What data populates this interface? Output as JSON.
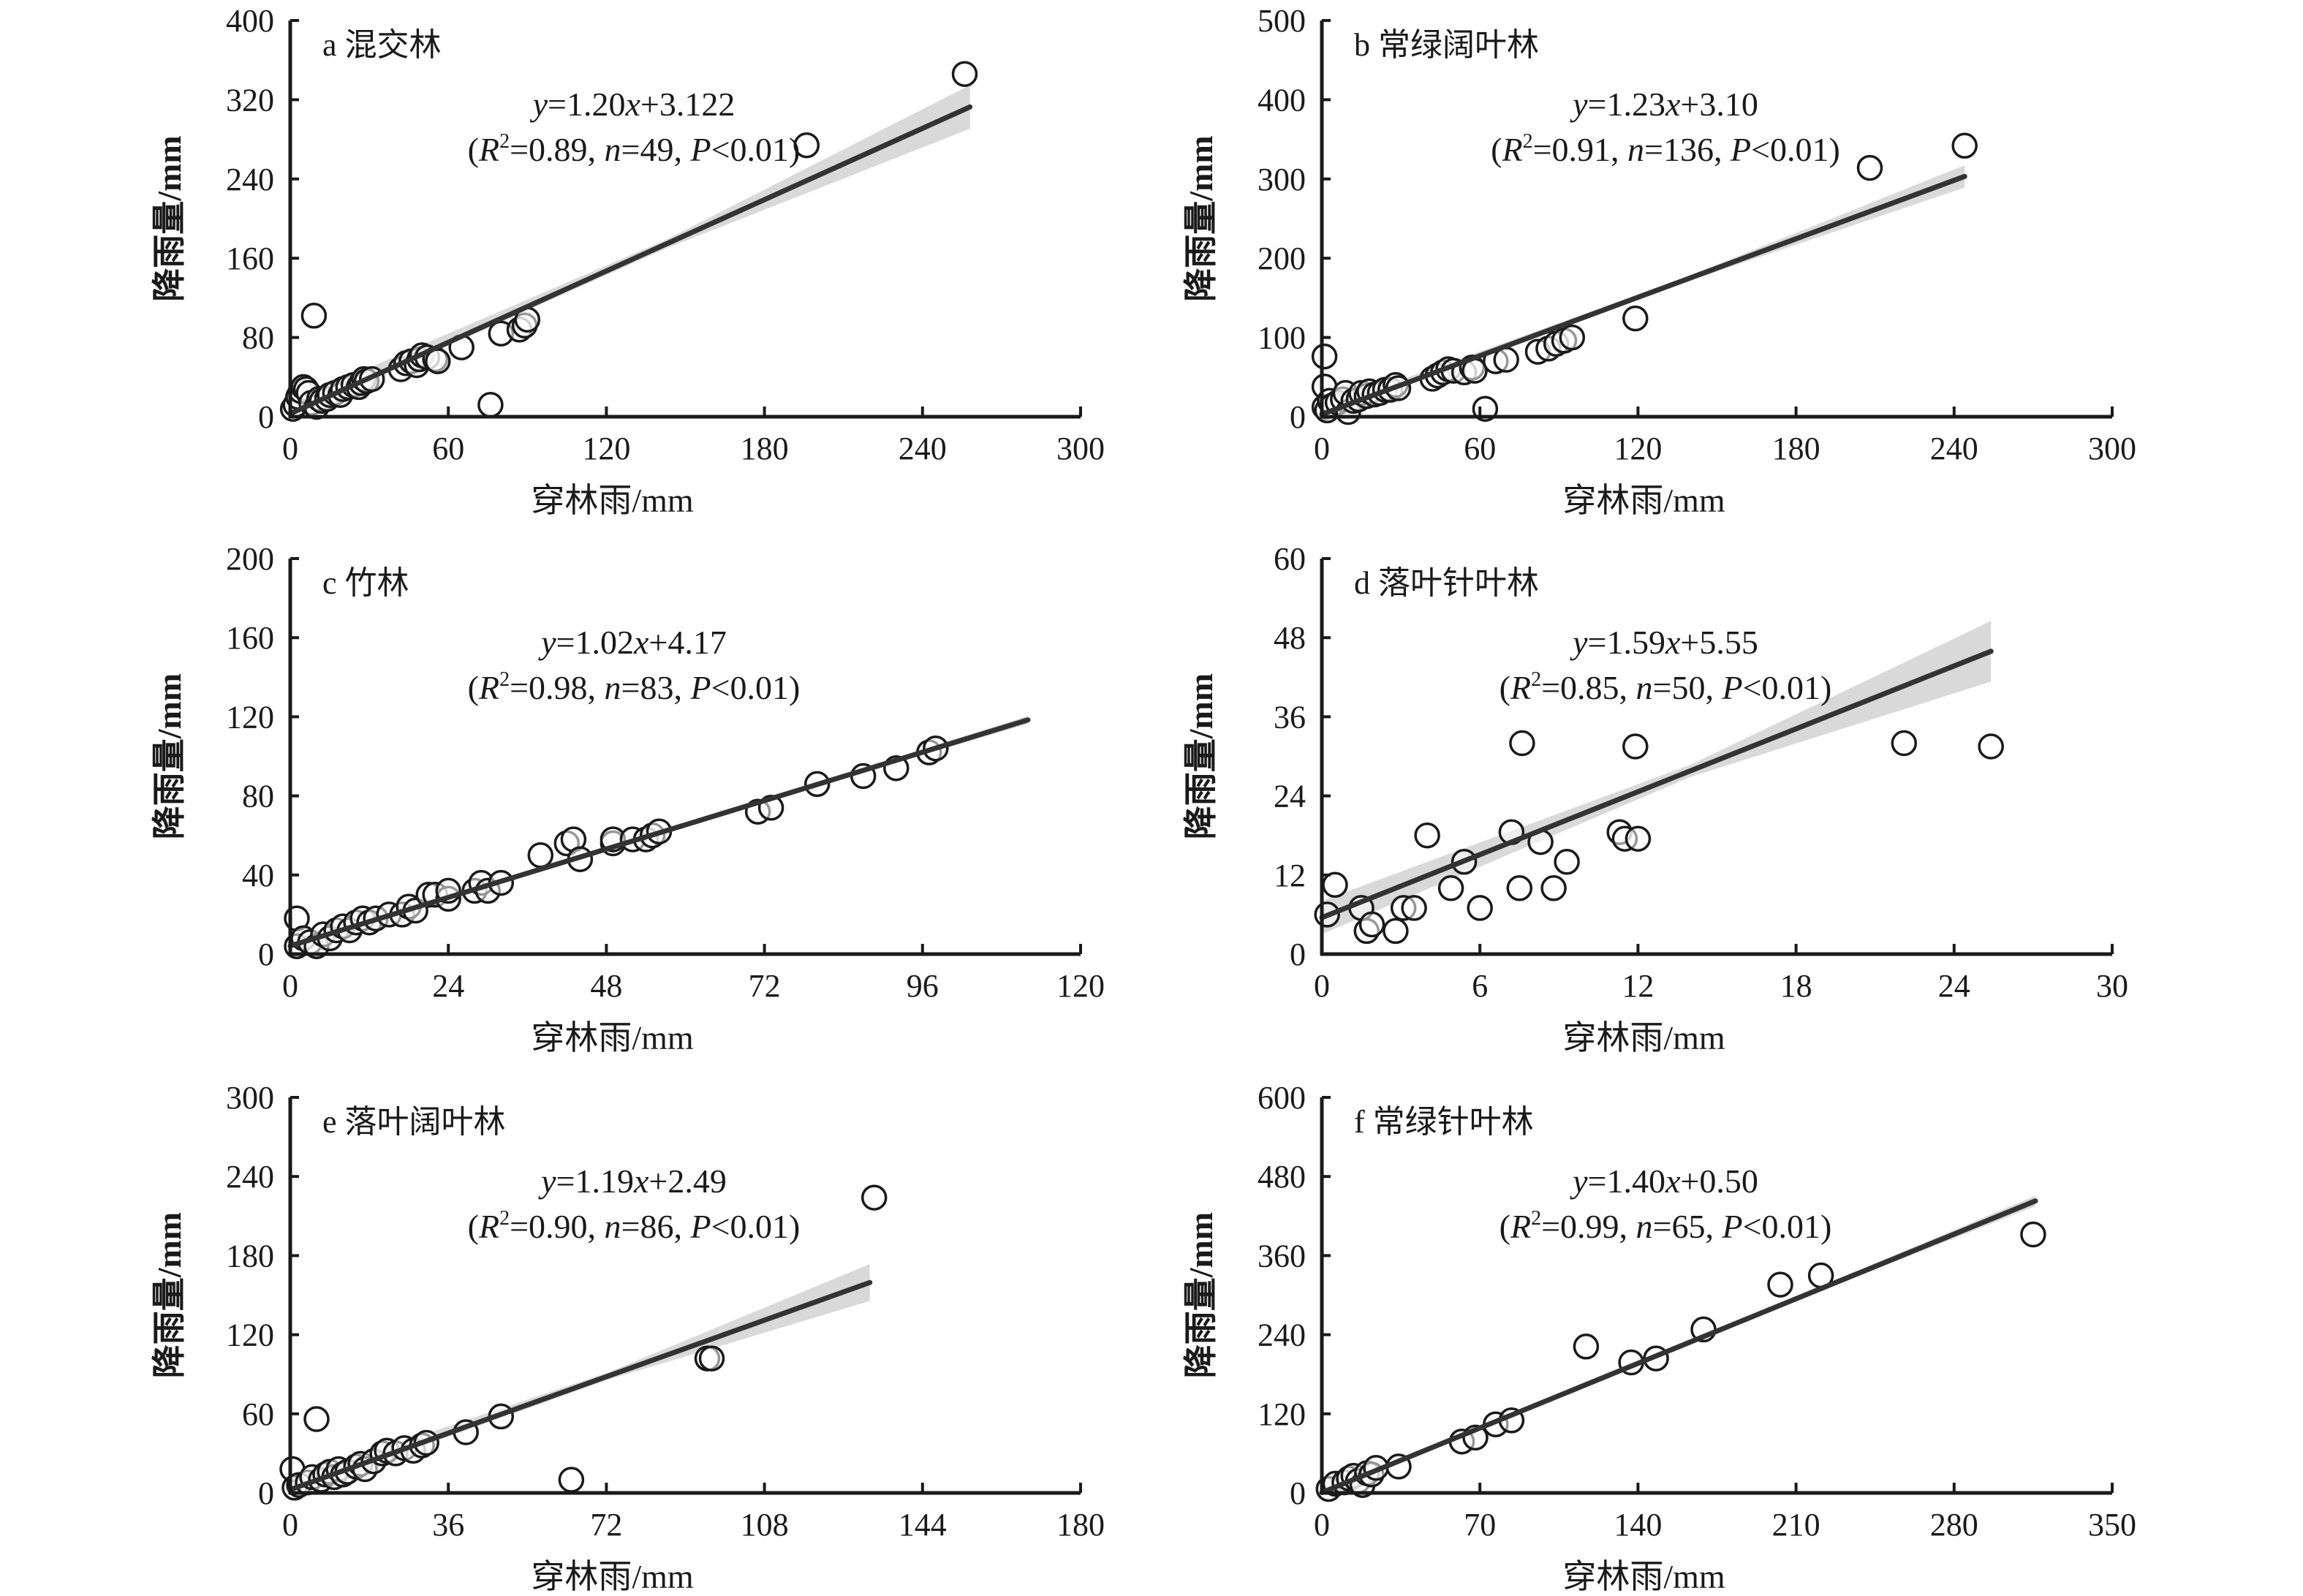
{
  "figure": {
    "xlabel": "穿林雨/mm",
    "ylabel": "降雨量/mm",
    "colors": {
      "axis": "#1a1a1a",
      "fit_line": "#333333",
      "ci_band": "#d9d9d9",
      "marker_edge": "#1a1a1a",
      "marker_face": "#ffffff"
    }
  },
  "chart_data": [
    {
      "type": "scatter",
      "id": "a",
      "title": "a 混交林",
      "xlabel": "穿林雨/mm",
      "ylabel": "降雨量/mm",
      "xlim": [
        0,
        300
      ],
      "ylim": [
        0,
        400
      ],
      "xticks": [
        "0",
        "60",
        "120",
        "180",
        "240",
        "300"
      ],
      "yticks": [
        "0",
        "80",
        "160",
        "240",
        "320",
        "400"
      ],
      "fit": {
        "slope": 1.2,
        "intercept": 3.122,
        "x_range": [
          0,
          258
        ],
        "ci_half_width_at_end": 22
      },
      "equation": {
        "y": "y",
        "rest": "=1.20",
        "x": "x",
        "tail": "+3.122"
      },
      "stats": {
        "open": "(",
        "R": "R",
        "sup": "2",
        "r2": "=0.89, ",
        "n": "n",
        "nval": "=49, ",
        "P": "P",
        "pval": "<0.01)"
      },
      "points": [
        [
          1,
          8
        ],
        [
          2,
          12
        ],
        [
          3,
          20
        ],
        [
          4,
          26
        ],
        [
          5,
          30
        ],
        [
          6,
          28
        ],
        [
          7,
          24
        ],
        [
          8,
          14
        ],
        [
          9,
          102
        ],
        [
          10,
          10
        ],
        [
          11,
          18
        ],
        [
          12,
          16
        ],
        [
          14,
          18
        ],
        [
          15,
          22
        ],
        [
          17,
          24
        ],
        [
          19,
          22
        ],
        [
          20,
          28
        ],
        [
          22,
          30
        ],
        [
          24,
          32
        ],
        [
          26,
          30
        ],
        [
          27,
          34
        ],
        [
          28,
          38
        ],
        [
          29,
          36
        ],
        [
          31,
          38
        ],
        [
          42,
          48
        ],
        [
          44,
          54
        ],
        [
          46,
          56
        ],
        [
          48,
          52
        ],
        [
          49,
          58
        ],
        [
          50,
          62
        ],
        [
          52,
          60
        ],
        [
          55,
          58
        ],
        [
          56,
          56
        ],
        [
          65,
          70
        ],
        [
          76,
          12
        ],
        [
          80,
          84
        ],
        [
          87,
          88
        ],
        [
          89,
          92
        ],
        [
          90,
          98
        ],
        [
          196,
          274
        ],
        [
          256,
          346
        ]
      ]
    },
    {
      "type": "scatter",
      "id": "b",
      "title": "b 常绿阔叶林",
      "xlabel": "穿林雨/mm",
      "ylabel": "降雨量/mm",
      "xlim": [
        0,
        300
      ],
      "ylim": [
        0,
        500
      ],
      "xticks": [
        "0",
        "60",
        "120",
        "180",
        "240",
        "300"
      ],
      "yticks": [
        "0",
        "100",
        "200",
        "300",
        "400",
        "500"
      ],
      "fit": {
        "slope": 1.23,
        "intercept": 3.1,
        "x_range": [
          0,
          244
        ],
        "ci_half_width_at_end": 14
      },
      "equation": {
        "y": "y",
        "rest": "=1.23",
        "x": "x",
        "tail": "+3.10"
      },
      "stats": {
        "open": "(",
        "R": "R",
        "sup": "2",
        "r2": "=0.91, ",
        "n": "n",
        "nval": "=136, ",
        "P": "P",
        "pval": "<0.01)"
      },
      "points": [
        [
          1,
          76
        ],
        [
          1,
          38
        ],
        [
          1,
          12
        ],
        [
          2,
          8
        ],
        [
          3,
          20
        ],
        [
          4,
          14
        ],
        [
          6,
          18
        ],
        [
          8,
          22
        ],
        [
          9,
          30
        ],
        [
          10,
          6
        ],
        [
          12,
          20
        ],
        [
          14,
          22
        ],
        [
          15,
          30
        ],
        [
          17,
          26
        ],
        [
          18,
          32
        ],
        [
          20,
          28
        ],
        [
          22,
          30
        ],
        [
          24,
          34
        ],
        [
          26,
          34
        ],
        [
          28,
          40
        ],
        [
          29,
          36
        ],
        [
          42,
          48
        ],
        [
          44,
          52
        ],
        [
          46,
          56
        ],
        [
          48,
          60
        ],
        [
          50,
          58
        ],
        [
          54,
          56
        ],
        [
          57,
          62
        ],
        [
          58,
          58
        ],
        [
          62,
          10
        ],
        [
          66,
          70
        ],
        [
          70,
          72
        ],
        [
          82,
          82
        ],
        [
          86,
          86
        ],
        [
          89,
          92
        ],
        [
          92,
          96
        ],
        [
          95,
          100
        ],
        [
          119,
          124
        ],
        [
          208,
          314
        ],
        [
          244,
          342
        ]
      ]
    },
    {
      "type": "scatter",
      "id": "c",
      "title": "c 竹林",
      "xlabel": "穿林雨/mm",
      "ylabel": "降雨量/mm",
      "xlim": [
        0,
        120
      ],
      "ylim": [
        0,
        200
      ],
      "xticks": [
        "0",
        "24",
        "48",
        "72",
        "96",
        "120"
      ],
      "yticks": [
        "0",
        "40",
        "80",
        "120",
        "160",
        "200"
      ],
      "fit": {
        "slope": 1.02,
        "intercept": 4.17,
        "x_range": [
          0,
          112
        ],
        "ci_half_width_at_end": 2
      },
      "equation": {
        "y": "y",
        "rest": "=1.02",
        "x": "x",
        "tail": "+4.17"
      },
      "stats": {
        "open": "(",
        "R": "R",
        "sup": "2",
        "r2": "=0.98, ",
        "n": "n",
        "nval": "=83, ",
        "P": "P",
        "pval": "<0.01)"
      },
      "points": [
        [
          1,
          18
        ],
        [
          1,
          4
        ],
        [
          2,
          8
        ],
        [
          3,
          6
        ],
        [
          4,
          4
        ],
        [
          5,
          10
        ],
        [
          6,
          8
        ],
        [
          7,
          12
        ],
        [
          8,
          14
        ],
        [
          9,
          12
        ],
        [
          10,
          16
        ],
        [
          11,
          18
        ],
        [
          12,
          16
        ],
        [
          13,
          18
        ],
        [
          15,
          20
        ],
        [
          17,
          20
        ],
        [
          18,
          24
        ],
        [
          19,
          22
        ],
        [
          21,
          30
        ],
        [
          22,
          30
        ],
        [
          24,
          28
        ],
        [
          24,
          32
        ],
        [
          28,
          32
        ],
        [
          29,
          36
        ],
        [
          30,
          32
        ],
        [
          32,
          36
        ],
        [
          38,
          50
        ],
        [
          42,
          56
        ],
        [
          43,
          58
        ],
        [
          44,
          48
        ],
        [
          49,
          56
        ],
        [
          49,
          58
        ],
        [
          52,
          58
        ],
        [
          54,
          58
        ],
        [
          55,
          60
        ],
        [
          56,
          62
        ],
        [
          71,
          72
        ],
        [
          73,
          74
        ],
        [
          80,
          86
        ],
        [
          87,
          90
        ],
        [
          92,
          94
        ],
        [
          97,
          102
        ],
        [
          98,
          104
        ]
      ]
    },
    {
      "type": "scatter",
      "id": "d",
      "title": "d 落叶针叶林",
      "xlabel": "穿林雨/mm",
      "ylabel": "降雨量/mm",
      "xlim": [
        0,
        30
      ],
      "ylim": [
        0,
        60
      ],
      "xticks": [
        "0",
        "6",
        "12",
        "18",
        "24",
        "30"
      ],
      "yticks": [
        "0",
        "12",
        "24",
        "36",
        "48",
        "60"
      ],
      "fit": {
        "slope": 1.59,
        "intercept": 5.55,
        "x_range": [
          0,
          25.4
        ],
        "ci_half_width_at_end": 4.6
      },
      "equation": {
        "y": "y",
        "rest": "=1.59",
        "x": "x",
        "tail": "+5.55"
      },
      "stats": {
        "open": "(",
        "R": "R",
        "sup": "2",
        "r2": "=0.85, ",
        "n": "n",
        "nval": "=50, ",
        "P": "P",
        "pval": "<0.01)"
      },
      "points": [
        [
          0.2,
          6
        ],
        [
          0.5,
          10.5
        ],
        [
          1.5,
          7
        ],
        [
          1.7,
          3.5
        ],
        [
          1.9,
          4.5
        ],
        [
          2.8,
          3.5
        ],
        [
          3.1,
          7
        ],
        [
          3.5,
          7
        ],
        [
          4,
          18
        ],
        [
          4.9,
          10
        ],
        [
          5.4,
          14
        ],
        [
          6,
          7
        ],
        [
          7.2,
          18.5
        ],
        [
          7.5,
          10
        ],
        [
          7.6,
          32
        ],
        [
          8.3,
          17
        ],
        [
          8.8,
          10
        ],
        [
          9.3,
          14
        ],
        [
          11.3,
          18.5
        ],
        [
          11.5,
          17.5
        ],
        [
          12,
          17.5
        ],
        [
          11.9,
          31.5
        ],
        [
          22.1,
          32
        ],
        [
          25.4,
          31.5
        ]
      ]
    },
    {
      "type": "scatter",
      "id": "e",
      "title": "e 落叶阔叶林",
      "xlabel": "穿林雨/mm",
      "ylabel": "降雨量/mm",
      "xlim": [
        0,
        180
      ],
      "ylim": [
        0,
        300
      ],
      "xticks": [
        "0",
        "36",
        "72",
        "108",
        "144",
        "180"
      ],
      "yticks": [
        "0",
        "60",
        "120",
        "180",
        "240",
        "300"
      ],
      "fit": {
        "slope": 1.19,
        "intercept": 2.49,
        "x_range": [
          0,
          132
        ],
        "ci_half_width_at_end": 14
      },
      "equation": {
        "y": "y",
        "rest": "=1.19",
        "x": "x",
        "tail": "+2.49"
      },
      "stats": {
        "open": "(",
        "R": "R",
        "sup": "2",
        "r2": "=0.90, ",
        "n": "n",
        "nval": "=86, ",
        "P": "P",
        "pval": "<0.01)"
      },
      "points": [
        [
          0.5,
          18
        ],
        [
          1,
          4
        ],
        [
          2,
          6
        ],
        [
          4,
          8
        ],
        [
          5,
          12
        ],
        [
          6,
          56
        ],
        [
          7,
          10
        ],
        [
          8,
          14
        ],
        [
          9,
          16
        ],
        [
          10,
          12
        ],
        [
          11,
          18
        ],
        [
          12,
          14
        ],
        [
          13,
          16
        ],
        [
          15,
          20
        ],
        [
          16,
          22
        ],
        [
          17,
          18
        ],
        [
          19,
          24
        ],
        [
          21,
          30
        ],
        [
          22,
          32
        ],
        [
          24,
          30
        ],
        [
          26,
          34
        ],
        [
          28,
          32
        ],
        [
          30,
          36
        ],
        [
          31,
          38
        ],
        [
          40,
          46
        ],
        [
          48,
          58
        ],
        [
          64,
          10
        ],
        [
          95,
          102
        ],
        [
          96,
          102
        ],
        [
          133,
          224
        ]
      ]
    },
    {
      "type": "scatter",
      "id": "f",
      "title": "f 常绿针叶林",
      "xlabel": "穿林雨/mm",
      "ylabel": "降雨量/mm",
      "xlim": [
        0,
        350
      ],
      "ylim": [
        0,
        600
      ],
      "xticks": [
        "0",
        "70",
        "140",
        "210",
        "280",
        "350"
      ],
      "yticks": [
        "0",
        "120",
        "240",
        "360",
        "480",
        "600"
      ],
      "fit": {
        "slope": 1.4,
        "intercept": 0.5,
        "x_range": [
          0,
          316
        ],
        "ci_half_width_at_end": 8
      },
      "equation": {
        "y": "y",
        "rest": "=1.40",
        "x": "x",
        "tail": "+0.50"
      },
      "stats": {
        "open": "(",
        "R": "R",
        "sup": "2",
        "r2": "=0.99, ",
        "n": "n",
        "nval": "=65, ",
        "P": "P",
        "pval": "<0.01)"
      },
      "points": [
        [
          3,
          6
        ],
        [
          6,
          14
        ],
        [
          10,
          16
        ],
        [
          12,
          22
        ],
        [
          14,
          26
        ],
        [
          16,
          18
        ],
        [
          18,
          12
        ],
        [
          20,
          30
        ],
        [
          22,
          28
        ],
        [
          24,
          38
        ],
        [
          34,
          40
        ],
        [
          62,
          78
        ],
        [
          68,
          84
        ],
        [
          77,
          104
        ],
        [
          84,
          110
        ],
        [
          117,
          222
        ],
        [
          137,
          198
        ],
        [
          148,
          204
        ],
        [
          169,
          248
        ],
        [
          203,
          316
        ],
        [
          221,
          330
        ],
        [
          315,
          392
        ]
      ]
    }
  ]
}
